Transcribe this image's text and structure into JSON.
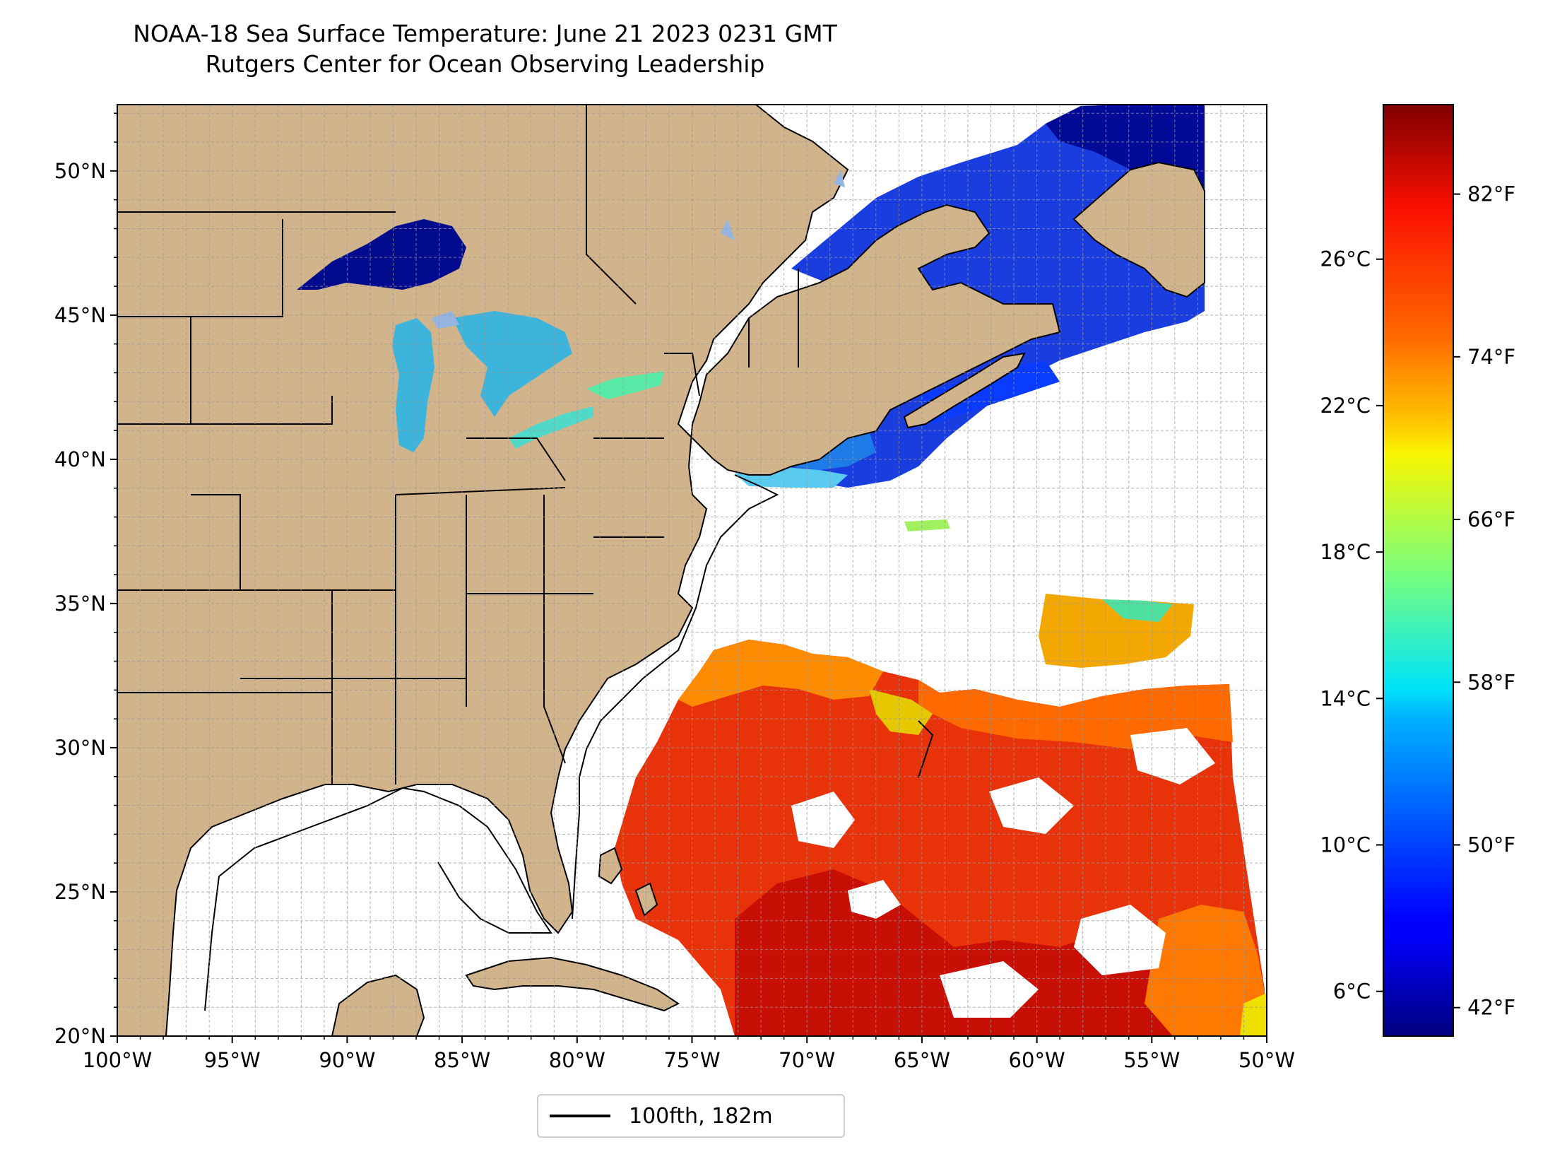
{
  "title": {
    "line1": "NOAA-18 Sea Surface Temperature: June 21 2023 0231 GMT",
    "line2": "Rutgers Center for Ocean Observing Leadership"
  },
  "map": {
    "projection": "equirectangular",
    "extent": {
      "lon_min": -100,
      "lon_max": -50,
      "lat_min": 20,
      "lat_max": 52.3
    },
    "land_color": "#d2b48c",
    "lake_color": "#96b4e0",
    "no_data_color": "#ffffff",
    "gridlines": "dashed, every 1 degree",
    "lon_ticks": [
      {
        "value": -100,
        "label": "100°W"
      },
      {
        "value": -95,
        "label": "95°W"
      },
      {
        "value": -90,
        "label": "90°W"
      },
      {
        "value": -85,
        "label": "85°W"
      },
      {
        "value": -80,
        "label": "80°W"
      },
      {
        "value": -75,
        "label": "75°W"
      },
      {
        "value": -70,
        "label": "70°W"
      },
      {
        "value": -65,
        "label": "65°W"
      },
      {
        "value": -60,
        "label": "60°W"
      },
      {
        "value": -55,
        "label": "55°W"
      },
      {
        "value": -50,
        "label": "50°W"
      }
    ],
    "lat_ticks": [
      {
        "value": 20,
        "label": "20°N"
      },
      {
        "value": 25,
        "label": "25°N"
      },
      {
        "value": 30,
        "label": "30°N"
      },
      {
        "value": 35,
        "label": "35°N"
      },
      {
        "value": 40,
        "label": "40°N"
      },
      {
        "value": 45,
        "label": "45°N"
      },
      {
        "value": 50,
        "label": "50°N"
      }
    ]
  },
  "colorbar": {
    "colormap": "jet",
    "range_f": [
      40.6,
      86.4
    ],
    "fahrenheit_ticks": [
      {
        "value": 42,
        "label": "42°F"
      },
      {
        "value": 50,
        "label": "50°F"
      },
      {
        "value": 58,
        "label": "58°F"
      },
      {
        "value": 66,
        "label": "66°F"
      },
      {
        "value": 74,
        "label": "74°F"
      },
      {
        "value": 82,
        "label": "82°F"
      }
    ],
    "celsius_ticks": [
      {
        "value": 6,
        "label": "6°C"
      },
      {
        "value": 10,
        "label": "10°C"
      },
      {
        "value": 14,
        "label": "14°C"
      },
      {
        "value": 18,
        "label": "18°C"
      },
      {
        "value": 22,
        "label": "22°C"
      },
      {
        "value": 26,
        "label": "26°C"
      }
    ]
  },
  "legend": {
    "label": "100fth, 182m",
    "line_color": "#000000"
  }
}
